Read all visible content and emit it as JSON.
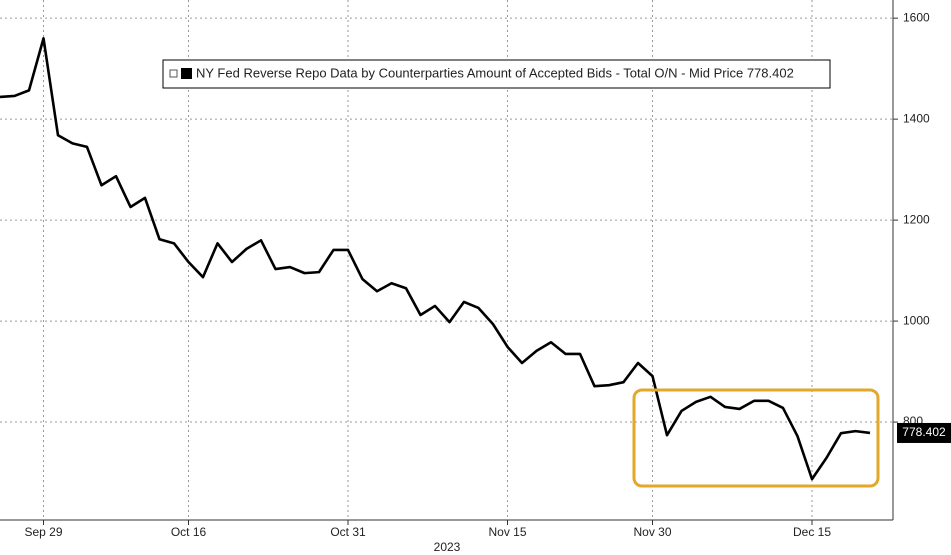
{
  "chart_data": {
    "type": "line",
    "series": [
      {
        "name": "NY Fed Reverse Repo Data by Counterparties Amount of Accepted Bids - Total O/N - Mid Price 778.402",
        "color": "#000000",
        "values": [
          1444,
          1446,
          1457,
          1560,
          1368,
          1352,
          1345,
          1269,
          1287,
          1226,
          1244,
          1162,
          1154,
          1117,
          1087,
          1154,
          1117,
          1143,
          1160,
          1103,
          1107,
          1095,
          1097,
          1141,
          1141,
          1083,
          1059,
          1075,
          1065,
          1012,
          1030,
          998,
          1038,
          1026,
          994,
          949,
          917,
          941,
          958,
          935,
          935,
          871,
          873,
          879,
          917,
          891,
          774,
          822,
          840,
          850,
          830,
          826,
          842,
          842,
          828,
          772,
          687,
          729,
          778,
          782,
          778.402
        ]
      }
    ],
    "categories": [
      null,
      null,
      null,
      "Sep 29",
      null,
      null,
      null,
      null,
      null,
      null,
      null,
      null,
      null,
      "Oct 16",
      null,
      null,
      null,
      null,
      null,
      null,
      null,
      null,
      null,
      null,
      "Oct 31",
      null,
      null,
      null,
      null,
      null,
      null,
      null,
      null,
      null,
      null,
      "Nov 15",
      null,
      null,
      null,
      null,
      null,
      null,
      null,
      null,
      null,
      "Nov 30",
      null,
      null,
      null,
      null,
      null,
      null,
      null,
      null,
      null,
      null,
      "Dec 15",
      null,
      null,
      null,
      null
    ],
    "xlabel": "2023",
    "ylim": [
      606,
      1636
    ],
    "yticks": [
      800,
      1000,
      1200,
      1400,
      1600
    ],
    "grid": true
  }
}
